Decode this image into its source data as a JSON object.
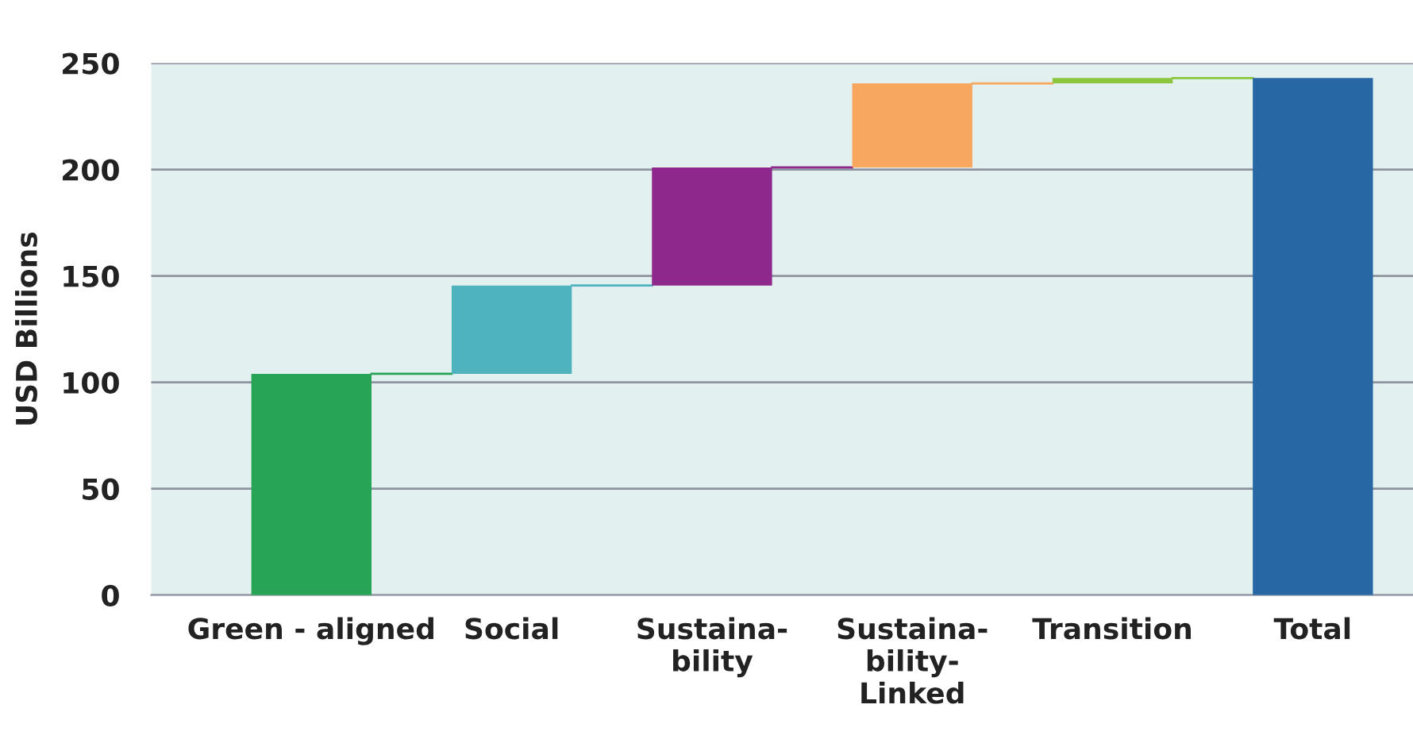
{
  "chart_data": {
    "type": "bar",
    "ylabel": "USD Billions",
    "categories": [
      "Green - aligned",
      "Social",
      "Sustaina-\nbility",
      "Sustaina-\nbility-\nLinked",
      "Transition",
      "Total"
    ],
    "values": [
      104,
      41.5,
      55.5,
      39.5,
      2.5,
      243
    ],
    "base": [
      0,
      104,
      145.5,
      201,
      240.5,
      0
    ],
    "colors": [
      "#27a456",
      "#4eb3bd",
      "#8e288c",
      "#f8a85e",
      "#8cc63f",
      "#2767a3"
    ],
    "ylim": [
      0,
      250
    ],
    "yticks": [
      0,
      50,
      100,
      150,
      200,
      250
    ],
    "grid": "y",
    "legend": false
  }
}
